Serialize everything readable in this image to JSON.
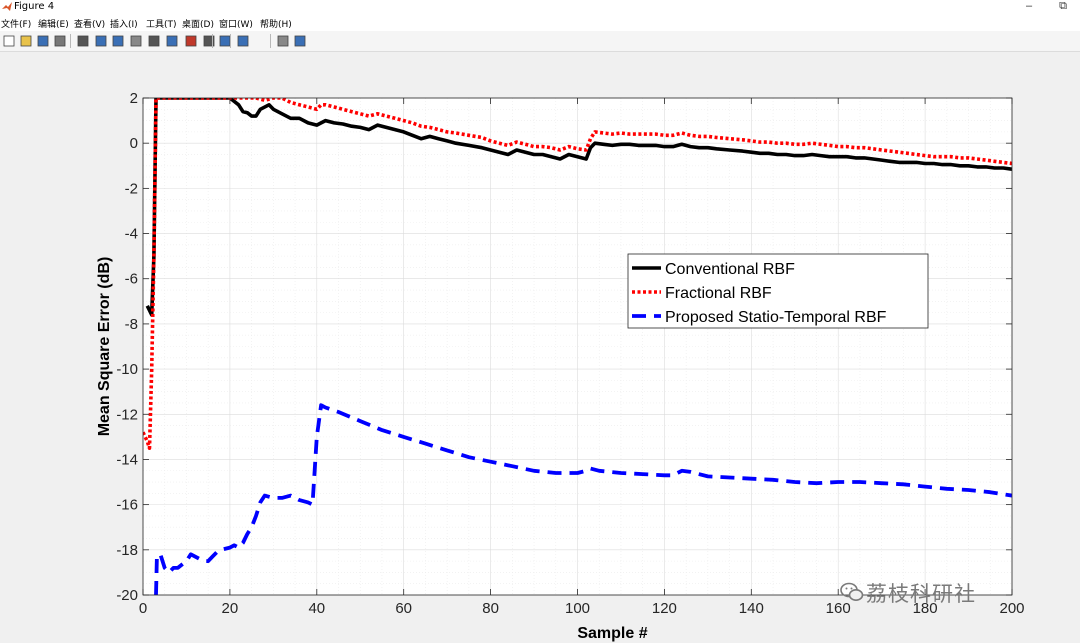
{
  "window": {
    "title": "Figure 4",
    "minimize_label": "–",
    "restore_label": "⧉"
  },
  "menu": [
    "文件(F)",
    "编辑(E)",
    "查看(V)",
    "插入(I)",
    "工具(T)",
    "桌面(D)",
    "窗口(W)",
    "帮助(H)"
  ],
  "toolbar_icons": [
    "new-file-icon",
    "open-file-icon",
    "save-icon",
    "print-icon",
    "pointer-icon",
    "zoom-in-icon",
    "zoom-out-icon",
    "pan-icon",
    "rotate-icon",
    "data-cursor-icon",
    "brush-icon",
    "link-icon",
    "colorbar-icon",
    "legend-icon",
    "hide-tools-icon",
    "dock-icon"
  ],
  "watermark": "荔枝科研社",
  "chart_data": {
    "type": "line",
    "xlabel": "Sample #",
    "ylabel": "Mean Square Error (dB)",
    "xlim": [
      0,
      200
    ],
    "ylim": [
      -20,
      2
    ],
    "xticks": [
      0,
      20,
      40,
      60,
      80,
      100,
      120,
      140,
      160,
      180,
      200
    ],
    "yticks": [
      2,
      0,
      -2,
      -4,
      -6,
      -8,
      -10,
      -12,
      -14,
      -16,
      -18,
      -20
    ],
    "grid": "minor",
    "legend_position": "center-right",
    "series": [
      {
        "name": "Conventional RBF",
        "color": "#000000",
        "style": "solid",
        "x": [
          1,
          2,
          2.5,
          3,
          19.8,
          20,
          22,
          23,
          24,
          25,
          26,
          27,
          29,
          30,
          32,
          34,
          36,
          38,
          40,
          41,
          42,
          44,
          46,
          48,
          50,
          52,
          54,
          56,
          58,
          60,
          62,
          64,
          66,
          68,
          70,
          72,
          75,
          78,
          80,
          82,
          84,
          86,
          88,
          90,
          92,
          94,
          96,
          98,
          100,
          102,
          103,
          104,
          106,
          108,
          110,
          112,
          114,
          116,
          118,
          120,
          122,
          124,
          126,
          128,
          130,
          132,
          135,
          138,
          140,
          142,
          144,
          146,
          148,
          150,
          152,
          154,
          156,
          158,
          160,
          162,
          164,
          166,
          168,
          170,
          172,
          174,
          176,
          178,
          180,
          182,
          184,
          186,
          188,
          190,
          192,
          194,
          196,
          198,
          200
        ],
        "y": [
          -7.2,
          -7.6,
          -5,
          2,
          2,
          2,
          1.7,
          1.4,
          1.35,
          1.2,
          1.2,
          1.5,
          1.7,
          1.5,
          1.3,
          1.1,
          1.1,
          0.9,
          0.8,
          0.9,
          1.0,
          0.9,
          0.85,
          0.75,
          0.7,
          0.6,
          0.8,
          0.7,
          0.6,
          0.5,
          0.35,
          0.2,
          0.3,
          0.2,
          0.1,
          0.0,
          -0.1,
          -0.2,
          -0.3,
          -0.4,
          -0.5,
          -0.3,
          -0.4,
          -0.5,
          -0.5,
          -0.6,
          -0.7,
          -0.5,
          -0.6,
          -0.7,
          -0.2,
          0.0,
          -0.05,
          -0.1,
          -0.05,
          -0.05,
          -0.1,
          -0.1,
          -0.1,
          -0.15,
          -0.15,
          -0.05,
          -0.15,
          -0.2,
          -0.2,
          -0.25,
          -0.3,
          -0.35,
          -0.4,
          -0.45,
          -0.45,
          -0.5,
          -0.5,
          -0.55,
          -0.55,
          -0.5,
          -0.55,
          -0.6,
          -0.6,
          -0.6,
          -0.65,
          -0.65,
          -0.7,
          -0.75,
          -0.8,
          -0.85,
          -0.85,
          -0.85,
          -0.9,
          -0.9,
          -0.95,
          -0.95,
          -1.0,
          -1.0,
          -1.05,
          -1.05,
          -1.1,
          -1.1,
          -1.15
        ]
      },
      {
        "name": "Fractional RBF",
        "color": "#ff0000",
        "style": "dotted",
        "x": [
          0,
          1,
          1.5,
          2,
          2.5,
          3,
          25,
          26,
          28,
          30,
          32,
          34,
          36,
          38,
          40,
          41,
          42,
          44,
          46,
          48,
          50,
          52,
          54,
          56,
          58,
          60,
          62,
          64,
          66,
          68,
          70,
          72,
          75,
          78,
          80,
          82,
          84,
          86,
          88,
          90,
          92,
          94,
          96,
          98,
          100,
          102,
          103,
          104,
          106,
          108,
          110,
          112,
          114,
          116,
          118,
          120,
          122,
          124,
          126,
          128,
          130,
          132,
          135,
          138,
          140,
          142,
          144,
          146,
          148,
          150,
          152,
          154,
          156,
          158,
          160,
          162,
          164,
          166,
          168,
          170,
          172,
          174,
          176,
          178,
          180,
          182,
          184,
          186,
          188,
          190,
          192,
          194,
          196,
          198,
          200
        ],
        "y": [
          -12.8,
          -13.2,
          -13.5,
          -10,
          -5,
          2,
          2,
          2,
          1.9,
          2.0,
          2.0,
          1.8,
          1.7,
          1.6,
          1.5,
          1.7,
          1.7,
          1.6,
          1.5,
          1.4,
          1.3,
          1.2,
          1.3,
          1.2,
          1.1,
          1.0,
          0.9,
          0.75,
          0.7,
          0.6,
          0.5,
          0.45,
          0.35,
          0.25,
          0.1,
          0.0,
          -0.1,
          0.05,
          -0.05,
          -0.15,
          -0.15,
          -0.2,
          -0.3,
          -0.15,
          -0.25,
          -0.3,
          0.2,
          0.5,
          0.45,
          0.4,
          0.45,
          0.4,
          0.4,
          0.4,
          0.4,
          0.35,
          0.35,
          0.45,
          0.35,
          0.3,
          0.3,
          0.25,
          0.2,
          0.15,
          0.1,
          0.05,
          0.05,
          0.0,
          0.0,
          -0.05,
          -0.05,
          0.0,
          -0.05,
          -0.1,
          -0.15,
          -0.15,
          -0.2,
          -0.2,
          -0.25,
          -0.3,
          -0.35,
          -0.4,
          -0.45,
          -0.5,
          -0.55,
          -0.6,
          -0.6,
          -0.6,
          -0.65,
          -0.65,
          -0.7,
          -0.75,
          -0.8,
          -0.85,
          -0.9
        ]
      },
      {
        "name": "Proposed Statio-Temporal RBF",
        "color": "#0000ff",
        "style": "dashed",
        "x": [
          3,
          3.2,
          4,
          5,
          6,
          7,
          8,
          10,
          11,
          12,
          13,
          14,
          15,
          16,
          17,
          18,
          20,
          21,
          22,
          23,
          24,
          25,
          26,
          27,
          28,
          30,
          32,
          34,
          36,
          38,
          39,
          40,
          41,
          42,
          45,
          50,
          55,
          60,
          65,
          70,
          75,
          80,
          85,
          90,
          95,
          100,
          102,
          103,
          105,
          110,
          115,
          120,
          122,
          124,
          126,
          130,
          135,
          140,
          145,
          150,
          155,
          160,
          165,
          170,
          175,
          180,
          185,
          190,
          195,
          200
        ],
        "y": [
          -20,
          -18.3,
          -18.2,
          -18.8,
          -19.0,
          -18.8,
          -18.8,
          -18.5,
          -18.2,
          -18.3,
          -18.4,
          -18.5,
          -18.5,
          -18.3,
          -18.1,
          -18.0,
          -17.9,
          -17.8,
          -17.9,
          -17.7,
          -17.3,
          -17.0,
          -16.5,
          -15.9,
          -15.6,
          -15.7,
          -15.7,
          -15.6,
          -15.8,
          -15.9,
          -16.0,
          -13.0,
          -11.6,
          -11.7,
          -11.9,
          -12.3,
          -12.7,
          -13.0,
          -13.3,
          -13.6,
          -13.9,
          -14.1,
          -14.3,
          -14.5,
          -14.6,
          -14.6,
          -14.5,
          -14.4,
          -14.5,
          -14.6,
          -14.65,
          -14.7,
          -14.7,
          -14.5,
          -14.55,
          -14.75,
          -14.8,
          -14.85,
          -14.9,
          -15.0,
          -15.05,
          -15.0,
          -15.0,
          -15.05,
          -15.1,
          -15.2,
          -15.3,
          -15.35,
          -15.45,
          -15.6
        ]
      }
    ]
  }
}
